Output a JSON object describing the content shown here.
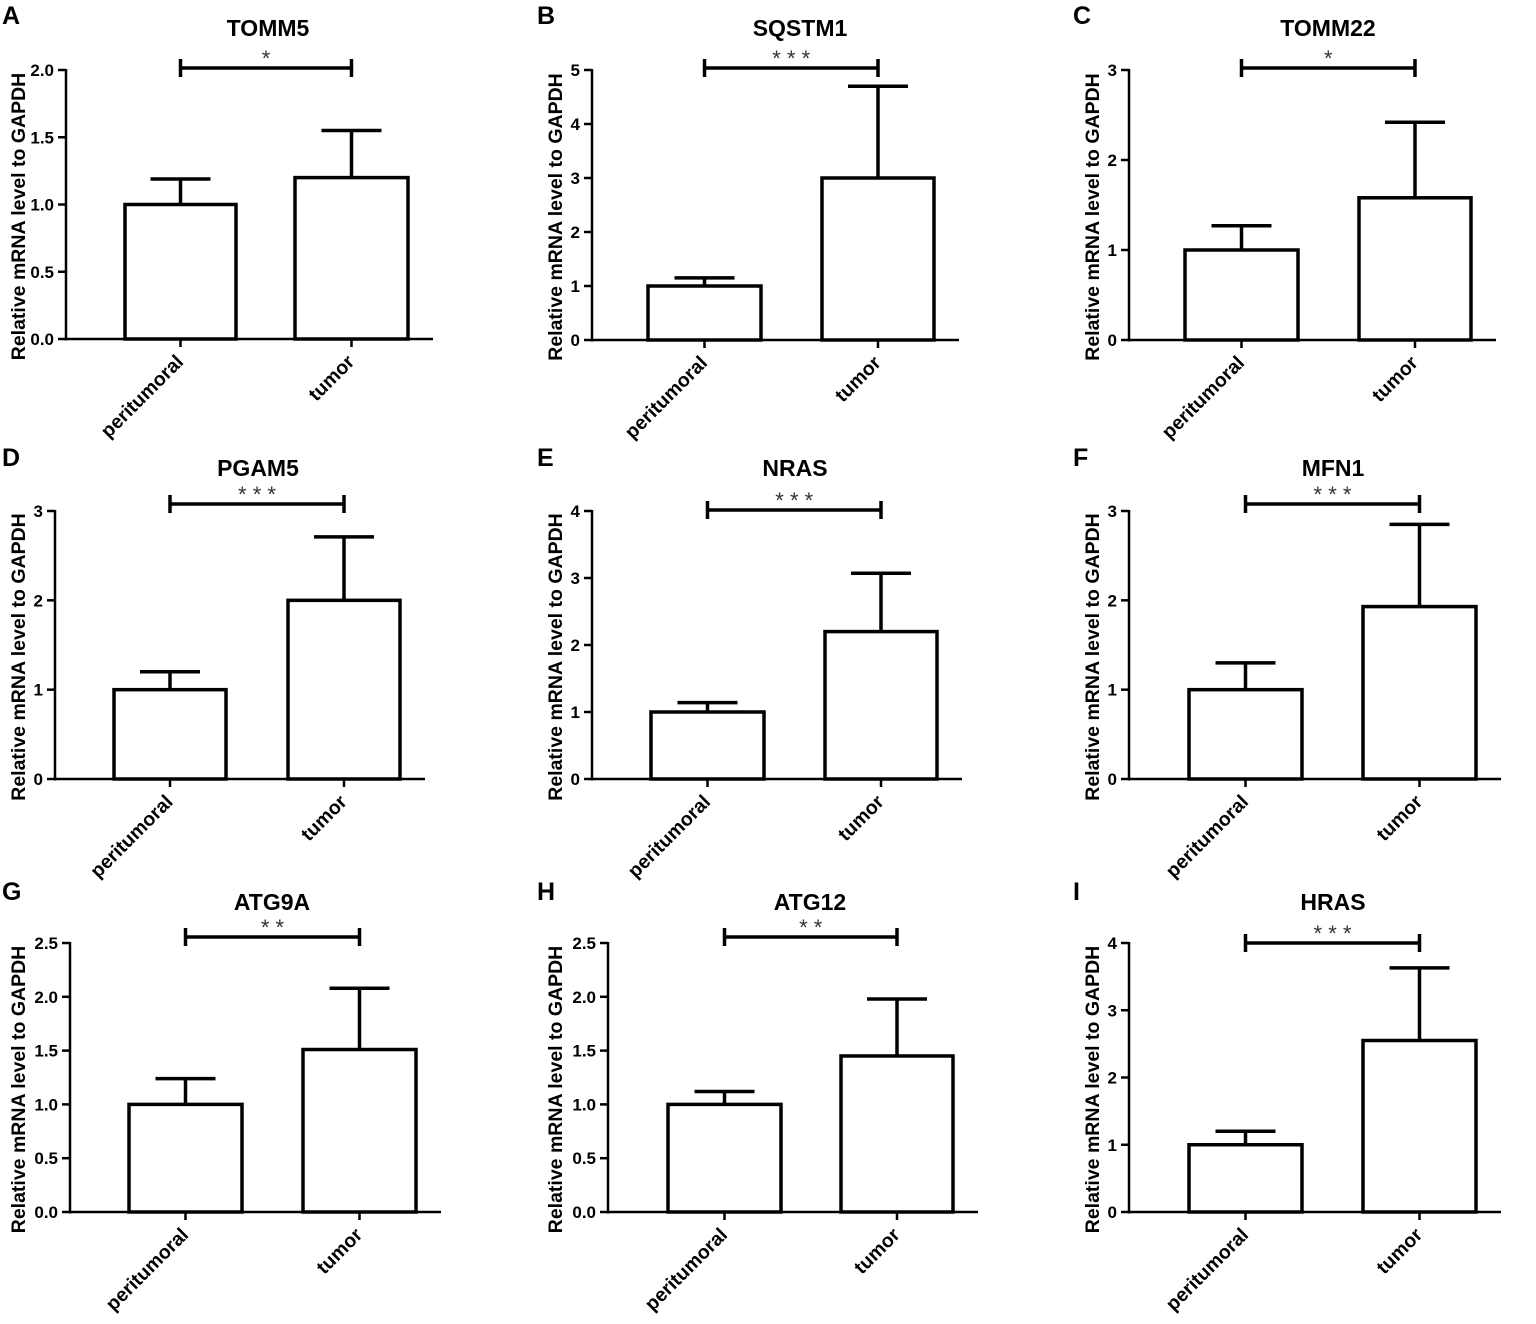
{
  "figure": {
    "ylabel": "Relative mRNA level to GAPDH",
    "categories": [
      "peritumoral",
      "tumor"
    ]
  },
  "chart_data": [
    {
      "panel": "A",
      "type": "bar",
      "title": "TOMM5",
      "categories": [
        "peritumoral",
        "tumor"
      ],
      "values": [
        1.0,
        1.2
      ],
      "errors": [
        0.19,
        0.35
      ],
      "ylim": [
        0,
        2.0
      ],
      "yticks": [
        "0.0",
        "0.5",
        "1.0",
        "1.5",
        "2.0"
      ],
      "significance": "*",
      "ylabel": "Relative mRNA level to GAPDH"
    },
    {
      "panel": "B",
      "type": "bar",
      "title": "SQSTM1",
      "categories": [
        "peritumoral",
        "tumor"
      ],
      "values": [
        1.0,
        3.0
      ],
      "errors": [
        0.15,
        1.7
      ],
      "ylim": [
        0,
        5
      ],
      "yticks": [
        "0",
        "1",
        "2",
        "3",
        "4",
        "5"
      ],
      "significance": "* * *",
      "ylabel": "Relative mRNA level to GAPDH"
    },
    {
      "panel": "C",
      "type": "bar",
      "title": "TOMM22",
      "categories": [
        "peritumoral",
        "tumor"
      ],
      "values": [
        1.0,
        1.58
      ],
      "errors": [
        0.27,
        0.84
      ],
      "ylim": [
        0,
        3
      ],
      "yticks": [
        "0",
        "1",
        "2",
        "3"
      ],
      "significance": "*",
      "ylabel": "Relative mRNA level to GAPDH"
    },
    {
      "panel": "D",
      "type": "bar",
      "title": "PGAM5",
      "categories": [
        "peritumoral",
        "tumor"
      ],
      "values": [
        1.0,
        2.0
      ],
      "errors": [
        0.2,
        0.71
      ],
      "ylim": [
        0,
        3
      ],
      "yticks": [
        "0",
        "1",
        "2",
        "3"
      ],
      "significance": "* * *",
      "ylabel": "Relative mRNA level to GAPDH"
    },
    {
      "panel": "E",
      "type": "bar",
      "title": "NRAS",
      "categories": [
        "peritumoral",
        "tumor"
      ],
      "values": [
        1.0,
        2.2
      ],
      "errors": [
        0.14,
        0.87
      ],
      "ylim": [
        0,
        4
      ],
      "yticks": [
        "0",
        "1",
        "2",
        "3",
        "4"
      ],
      "significance": "* * *",
      "ylabel": "Relative mRNA level to GAPDH"
    },
    {
      "panel": "F",
      "type": "bar",
      "title": "MFN1",
      "categories": [
        "peritumoral",
        "tumor"
      ],
      "values": [
        1.0,
        1.93
      ],
      "errors": [
        0.3,
        0.92
      ],
      "ylim": [
        0,
        3
      ],
      "yticks": [
        "0",
        "1",
        "2",
        "3"
      ],
      "significance": "* * *",
      "ylabel": "Relative mRNA level to GAPDH"
    },
    {
      "panel": "G",
      "type": "bar",
      "title": "ATG9A",
      "categories": [
        "peritumoral",
        "tumor"
      ],
      "values": [
        1.0,
        1.51
      ],
      "errors": [
        0.24,
        0.57
      ],
      "ylim": [
        0,
        2.5
      ],
      "yticks": [
        "0.0",
        "0.5",
        "1.0",
        "1.5",
        "2.0",
        "2.5"
      ],
      "significance": "* *",
      "ylabel": "Relative mRNA level to GAPDH"
    },
    {
      "panel": "H",
      "type": "bar",
      "title": "ATG12",
      "categories": [
        "peritumoral",
        "tumor"
      ],
      "values": [
        1.0,
        1.45
      ],
      "errors": [
        0.12,
        0.53
      ],
      "ylim": [
        0,
        2.5
      ],
      "yticks": [
        "0.0",
        "0.5",
        "1.0",
        "1.5",
        "2.0",
        "2.5"
      ],
      "significance": "* *",
      "ylabel": "Relative mRNA level to GAPDH"
    },
    {
      "panel": "I",
      "type": "bar",
      "title": "HRAS",
      "categories": [
        "peritumoral",
        "tumor"
      ],
      "values": [
        1.0,
        2.55
      ],
      "errors": [
        0.2,
        1.08
      ],
      "ylim": [
        0,
        4
      ],
      "yticks": [
        "0",
        "1",
        "2",
        "3",
        "4"
      ],
      "significance": "* * *",
      "ylabel": "Relative mRNA level to GAPDH"
    }
  ]
}
